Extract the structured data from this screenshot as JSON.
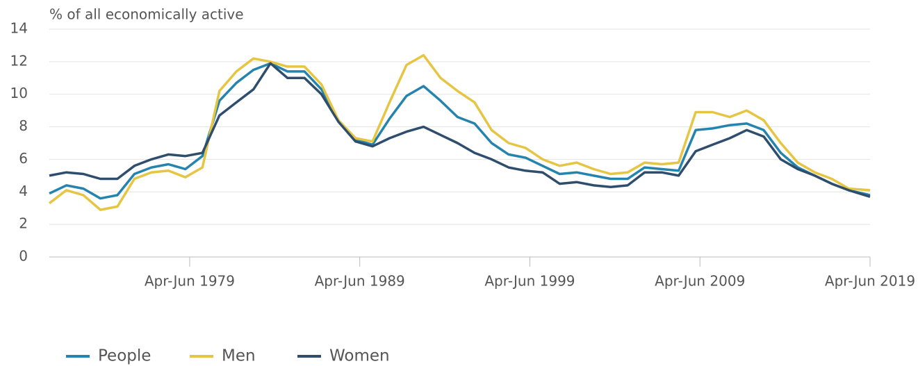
{
  "chart_data": {
    "type": "line",
    "y_label": "% of all economically active",
    "x": [
      1971,
      1972,
      1973,
      1974,
      1975,
      1976,
      1977,
      1978,
      1979,
      1980,
      1981,
      1982,
      1983,
      1984,
      1985,
      1986,
      1987,
      1988,
      1989,
      1990,
      1991,
      1992,
      1993,
      1994,
      1995,
      1996,
      1997,
      1998,
      1999,
      2000,
      2001,
      2002,
      2003,
      2004,
      2005,
      2006,
      2007,
      2008,
      2009,
      2010,
      2011,
      2012,
      2013,
      2014,
      2015,
      2016,
      2017,
      2018,
      2019.25
    ],
    "series": [
      {
        "name": "People",
        "color": "#2584ad",
        "values": [
          3.9,
          4.4,
          4.2,
          3.6,
          3.8,
          5.1,
          5.5,
          5.7,
          5.4,
          6.2,
          9.6,
          10.7,
          11.5,
          11.9,
          11.4,
          11.4,
          10.3,
          8.4,
          7.2,
          6.9,
          8.5,
          9.9,
          10.5,
          9.6,
          8.6,
          8.2,
          7.0,
          6.3,
          6.1,
          5.6,
          5.1,
          5.2,
          5.0,
          4.8,
          4.8,
          5.5,
          5.4,
          5.3,
          7.8,
          7.9,
          8.1,
          8.2,
          7.8,
          6.4,
          5.5,
          5.0,
          4.5,
          4.1,
          3.8
        ]
      },
      {
        "name": "Men",
        "color": "#e6c543",
        "values": [
          3.3,
          4.1,
          3.8,
          2.9,
          3.1,
          4.8,
          5.2,
          5.3,
          4.9,
          5.5,
          10.2,
          11.4,
          12.2,
          12.0,
          11.7,
          11.7,
          10.6,
          8.4,
          7.3,
          7.1,
          9.5,
          11.8,
          12.4,
          11.0,
          10.2,
          9.5,
          7.8,
          7.0,
          6.7,
          6.0,
          5.6,
          5.8,
          5.4,
          5.1,
          5.2,
          5.8,
          5.7,
          5.8,
          8.9,
          8.9,
          8.6,
          9.0,
          8.4,
          7.0,
          5.8,
          5.2,
          4.8,
          4.2,
          4.1
        ]
      },
      {
        "name": "Women",
        "color": "#2f4e6e",
        "values": [
          5.0,
          5.2,
          5.1,
          4.8,
          4.8,
          5.6,
          6.0,
          6.3,
          6.2,
          6.4,
          8.7,
          9.5,
          10.3,
          11.9,
          11.0,
          11.0,
          10.0,
          8.3,
          7.1,
          6.8,
          7.3,
          7.7,
          8.0,
          7.5,
          7.0,
          6.4,
          6.0,
          5.5,
          5.3,
          5.2,
          4.5,
          4.6,
          4.4,
          4.3,
          4.4,
          5.2,
          5.2,
          5.0,
          6.5,
          6.9,
          7.3,
          7.8,
          7.4,
          6.0,
          5.4,
          5.0,
          4.5,
          4.1,
          3.7
        ]
      }
    ],
    "xlim": [
      1971,
      2019.25
    ],
    "xticks": [
      {
        "value": 1979.25,
        "label": "Apr-Jun 1979"
      },
      {
        "value": 1989.25,
        "label": "Apr-Jun 1989"
      },
      {
        "value": 1999.25,
        "label": "Apr-Jun 1999"
      },
      {
        "value": 2009.25,
        "label": "Apr-Jun 2009"
      },
      {
        "value": 2019.25,
        "label": "Apr-Jun 2019"
      }
    ],
    "ylim": [
      0,
      14
    ],
    "yticks": [
      0,
      2,
      4,
      6,
      8,
      10,
      12,
      14
    ],
    "grid": true
  }
}
